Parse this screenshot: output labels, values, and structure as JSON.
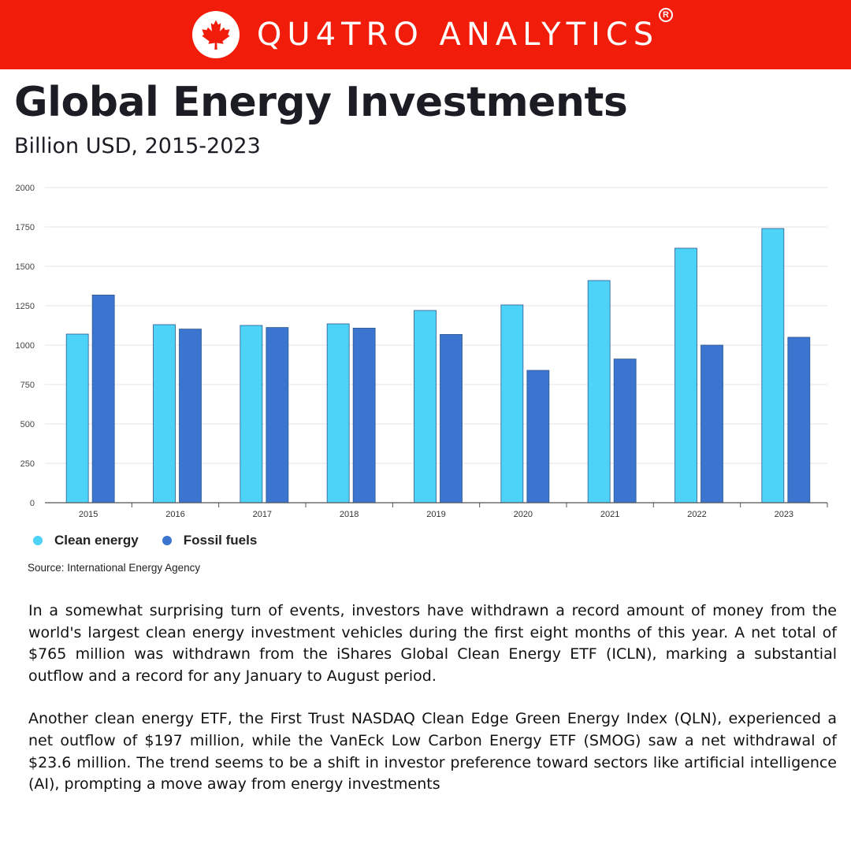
{
  "banner": {
    "brand_name": "QU4TRO ANALYTICS",
    "registered_mark": "R",
    "logo_icon": "maple-leaf-icon",
    "colors": {
      "background": "#f21c0a",
      "foreground": "#ffffff"
    }
  },
  "header": {
    "title": "Global Energy Investments",
    "subtitle": "Billion USD, 2015-2023"
  },
  "chart_data": {
    "type": "bar",
    "categories": [
      "2015",
      "2016",
      "2017",
      "2018",
      "2019",
      "2020",
      "2021",
      "2022",
      "2023"
    ],
    "series": [
      {
        "name": "Clean energy",
        "color": "#4dd2f8",
        "values": [
          1070,
          1130,
          1125,
          1135,
          1220,
          1255,
          1410,
          1615,
          1740
        ]
      },
      {
        "name": "Fossil fuels",
        "color": "#3b75d0",
        "values": [
          1318,
          1102,
          1112,
          1108,
          1068,
          840,
          912,
          1000,
          1050
        ]
      }
    ],
    "yticks": [
      "0",
      "250",
      "500",
      "750",
      "1000",
      "1250",
      "1500",
      "1750",
      "2000"
    ],
    "ylim": [
      0,
      2000
    ],
    "grid": true,
    "legend_position": "bottom-left",
    "source": "Source: International Energy Agency"
  },
  "article": {
    "paragraphs": [
      "In a somewhat surprising turn of events, investors have withdrawn a record amount of money from the world's largest clean energy investment vehicles during the first eight months of this year. A net total of $765 million was withdrawn from the iShares Global Clean Energy ETF (ICLN), marking a substantial outflow and a record for any January to August period.",
      "Another clean energy ETF, the First Trust NASDAQ Clean Edge Green Energy Index (QLN), experienced a net outflow of $197 million, while the VanEck Low Carbon Energy ETF (SMOG) saw a net withdrawal of $23.6 million. The trend seems to be a shift in investor preference toward sectors like artificial intelligence (AI), prompting a move away from energy investments"
    ]
  }
}
